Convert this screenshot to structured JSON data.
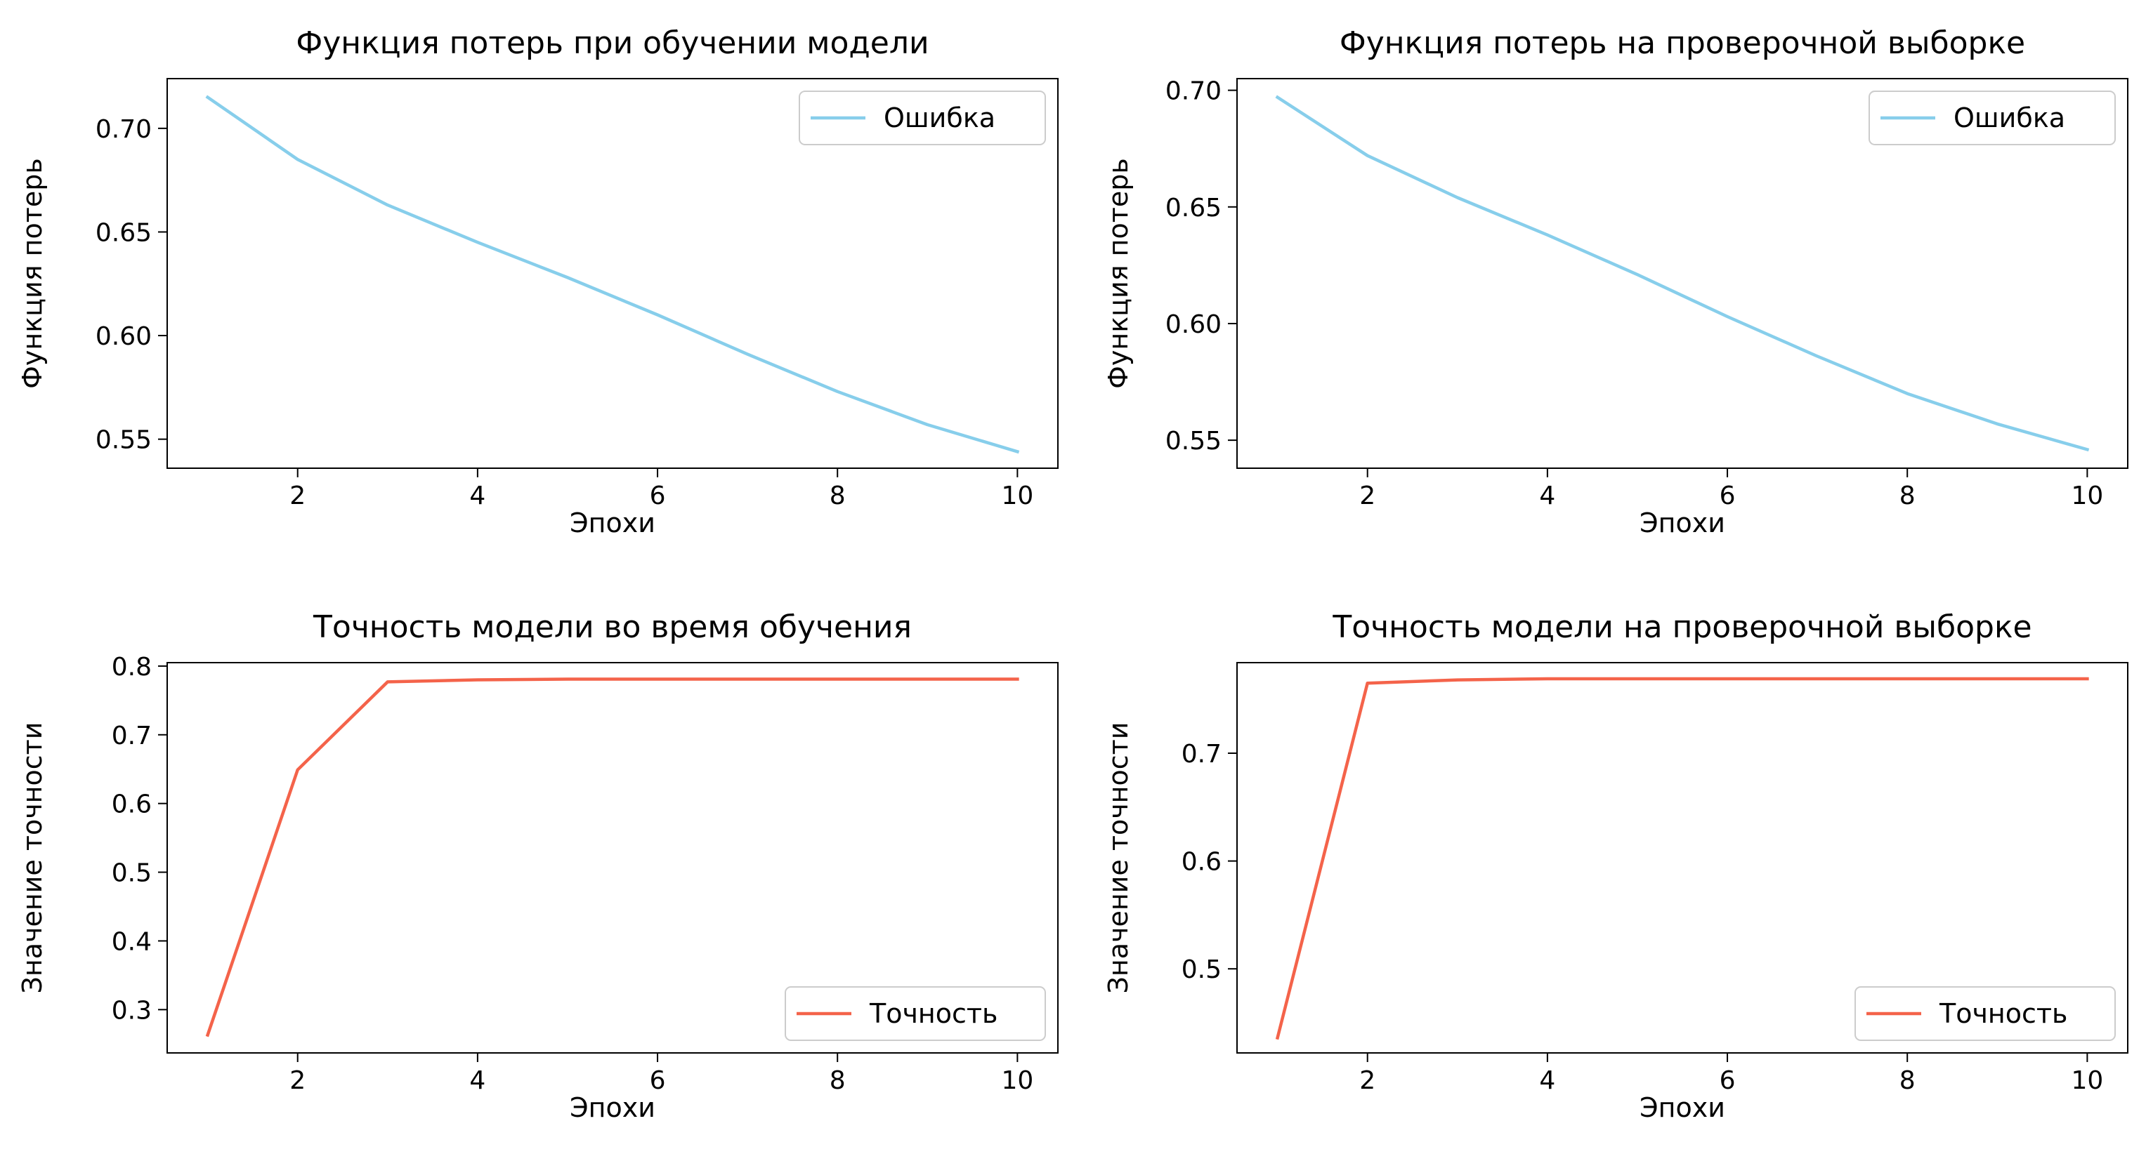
{
  "chart_data": [
    {
      "type": "line",
      "title": "Функция потерь при обучении модели",
      "xlabel": "Эпохи",
      "ylabel": "Функция потерь",
      "xlim": [
        0.55,
        10.45
      ],
      "ylim": [
        0.536,
        0.724
      ],
      "xticks": [
        2,
        4,
        6,
        8,
        10
      ],
      "yticks": [
        0.55,
        0.6,
        0.65,
        0.7
      ],
      "ytick_labels": [
        "0.55",
        "0.60",
        "0.65",
        "0.70"
      ],
      "legend_position": "upper right",
      "series": [
        {
          "name": "Ошибка",
          "color": "#87CEEB",
          "x": [
            1,
            2,
            3,
            4,
            5,
            6,
            7,
            8,
            9,
            10
          ],
          "values": [
            0.715,
            0.685,
            0.663,
            0.645,
            0.628,
            0.61,
            0.591,
            0.573,
            0.557,
            0.544
          ]
        }
      ]
    },
    {
      "type": "line",
      "title": "Функция потерь на проверочной выборке",
      "xlabel": "Эпохи",
      "ylabel": "Функция потерь",
      "xlim": [
        0.55,
        10.45
      ],
      "ylim": [
        0.538,
        0.705
      ],
      "xticks": [
        2,
        4,
        6,
        8,
        10
      ],
      "yticks": [
        0.55,
        0.6,
        0.65,
        0.7
      ],
      "ytick_labels": [
        "0.55",
        "0.60",
        "0.65",
        "0.70"
      ],
      "legend_position": "upper right",
      "series": [
        {
          "name": "Ошибка",
          "color": "#87CEEB",
          "x": [
            1,
            2,
            3,
            4,
            5,
            6,
            7,
            8,
            9,
            10
          ],
          "values": [
            0.697,
            0.672,
            0.654,
            0.638,
            0.621,
            0.603,
            0.586,
            0.57,
            0.557,
            0.546
          ]
        }
      ]
    },
    {
      "type": "line",
      "title": "Точность модели во время обучения",
      "xlabel": "Эпохи",
      "ylabel": "Значение точности",
      "xlim": [
        0.55,
        10.45
      ],
      "ylim": [
        0.237,
        0.805
      ],
      "xticks": [
        2,
        4,
        6,
        8,
        10
      ],
      "yticks": [
        0.3,
        0.4,
        0.5,
        0.6,
        0.7,
        0.8
      ],
      "ytick_labels": [
        "0.3",
        "0.4",
        "0.5",
        "0.6",
        "0.7",
        "0.8"
      ],
      "legend_position": "lower right",
      "series": [
        {
          "name": "Точность",
          "color": "#F4634A",
          "x": [
            1,
            2,
            3,
            4,
            5,
            6,
            7,
            8,
            9,
            10
          ],
          "values": [
            0.263,
            0.649,
            0.777,
            0.78,
            0.781,
            0.781,
            0.781,
            0.781,
            0.781,
            0.781
          ]
        }
      ]
    },
    {
      "type": "line",
      "title": "Точность модели на проверочной выборке",
      "xlabel": "Эпохи",
      "ylabel": "Значение точности",
      "xlim": [
        0.55,
        10.45
      ],
      "ylim": [
        0.422,
        0.784
      ],
      "xticks": [
        2,
        4,
        6,
        8,
        10
      ],
      "yticks": [
        0.5,
        0.6,
        0.7
      ],
      "ytick_labels": [
        "0.5",
        "0.6",
        "0.7"
      ],
      "legend_position": "lower right",
      "series": [
        {
          "name": "Точность",
          "color": "#F4634A",
          "x": [
            1,
            2,
            3,
            4,
            5,
            6,
            7,
            8,
            9,
            10
          ],
          "values": [
            0.436,
            0.765,
            0.768,
            0.769,
            0.769,
            0.769,
            0.769,
            0.769,
            0.769,
            0.769
          ]
        }
      ]
    }
  ]
}
